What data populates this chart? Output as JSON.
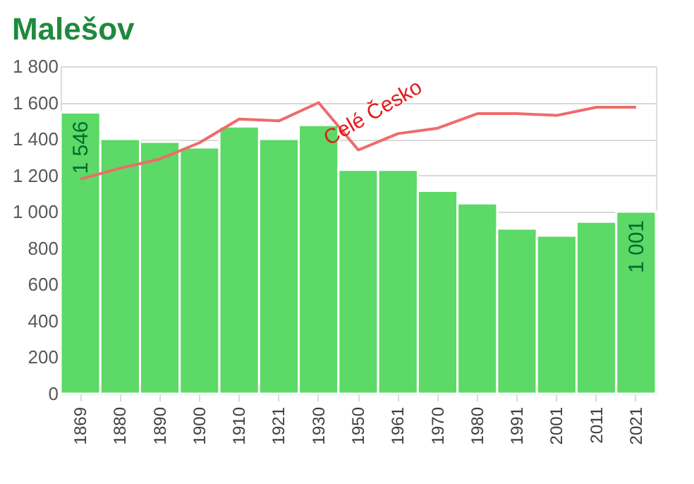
{
  "chart_data": {
    "type": "bar",
    "title": "Malešov",
    "categories": [
      "1869",
      "1880",
      "1890",
      "1900",
      "1910",
      "1921",
      "1930",
      "1950",
      "1961",
      "1970",
      "1980",
      "1991",
      "2001",
      "2011",
      "2021"
    ],
    "series": [
      {
        "color": "#5cd966",
        "values": [
          1546,
          1400,
          1385,
          1354,
          1469,
          1400,
          1477,
          1231,
          1231,
          1115,
          1046,
          908,
          869,
          946,
          1001
        ],
        "value_labels": [
          "1 546",
          null,
          null,
          null,
          null,
          null,
          null,
          null,
          null,
          null,
          null,
          null,
          null,
          null,
          "1 001"
        ]
      },
      {
        "type": "line",
        "name": "Celé Česko",
        "color": "#ef6b6b",
        "values": [
          1180,
          1240,
          1290,
          1380,
          1510,
          1500,
          1600,
          1340,
          1430,
          1460,
          1540,
          1540,
          1530,
          1575,
          1575
        ]
      }
    ],
    "ylim": [
      0,
      1800
    ],
    "yticks": [
      0,
      {
        "value": 200,
        "label": "200"
      },
      {
        "value": 400,
        "label": "400"
      },
      {
        "value": 600,
        "label": "600"
      },
      {
        "value": 800,
        "label": "800"
      },
      {
        "value": 1000,
        "label": "1 000"
      },
      {
        "value": 1200,
        "label": "1 200"
      },
      {
        "value": 1400,
        "label": "1 400"
      },
      {
        "value": 1600,
        "label": "1 600"
      },
      {
        "value": 1800,
        "label": "1 800"
      }
    ],
    "grid": "y"
  }
}
